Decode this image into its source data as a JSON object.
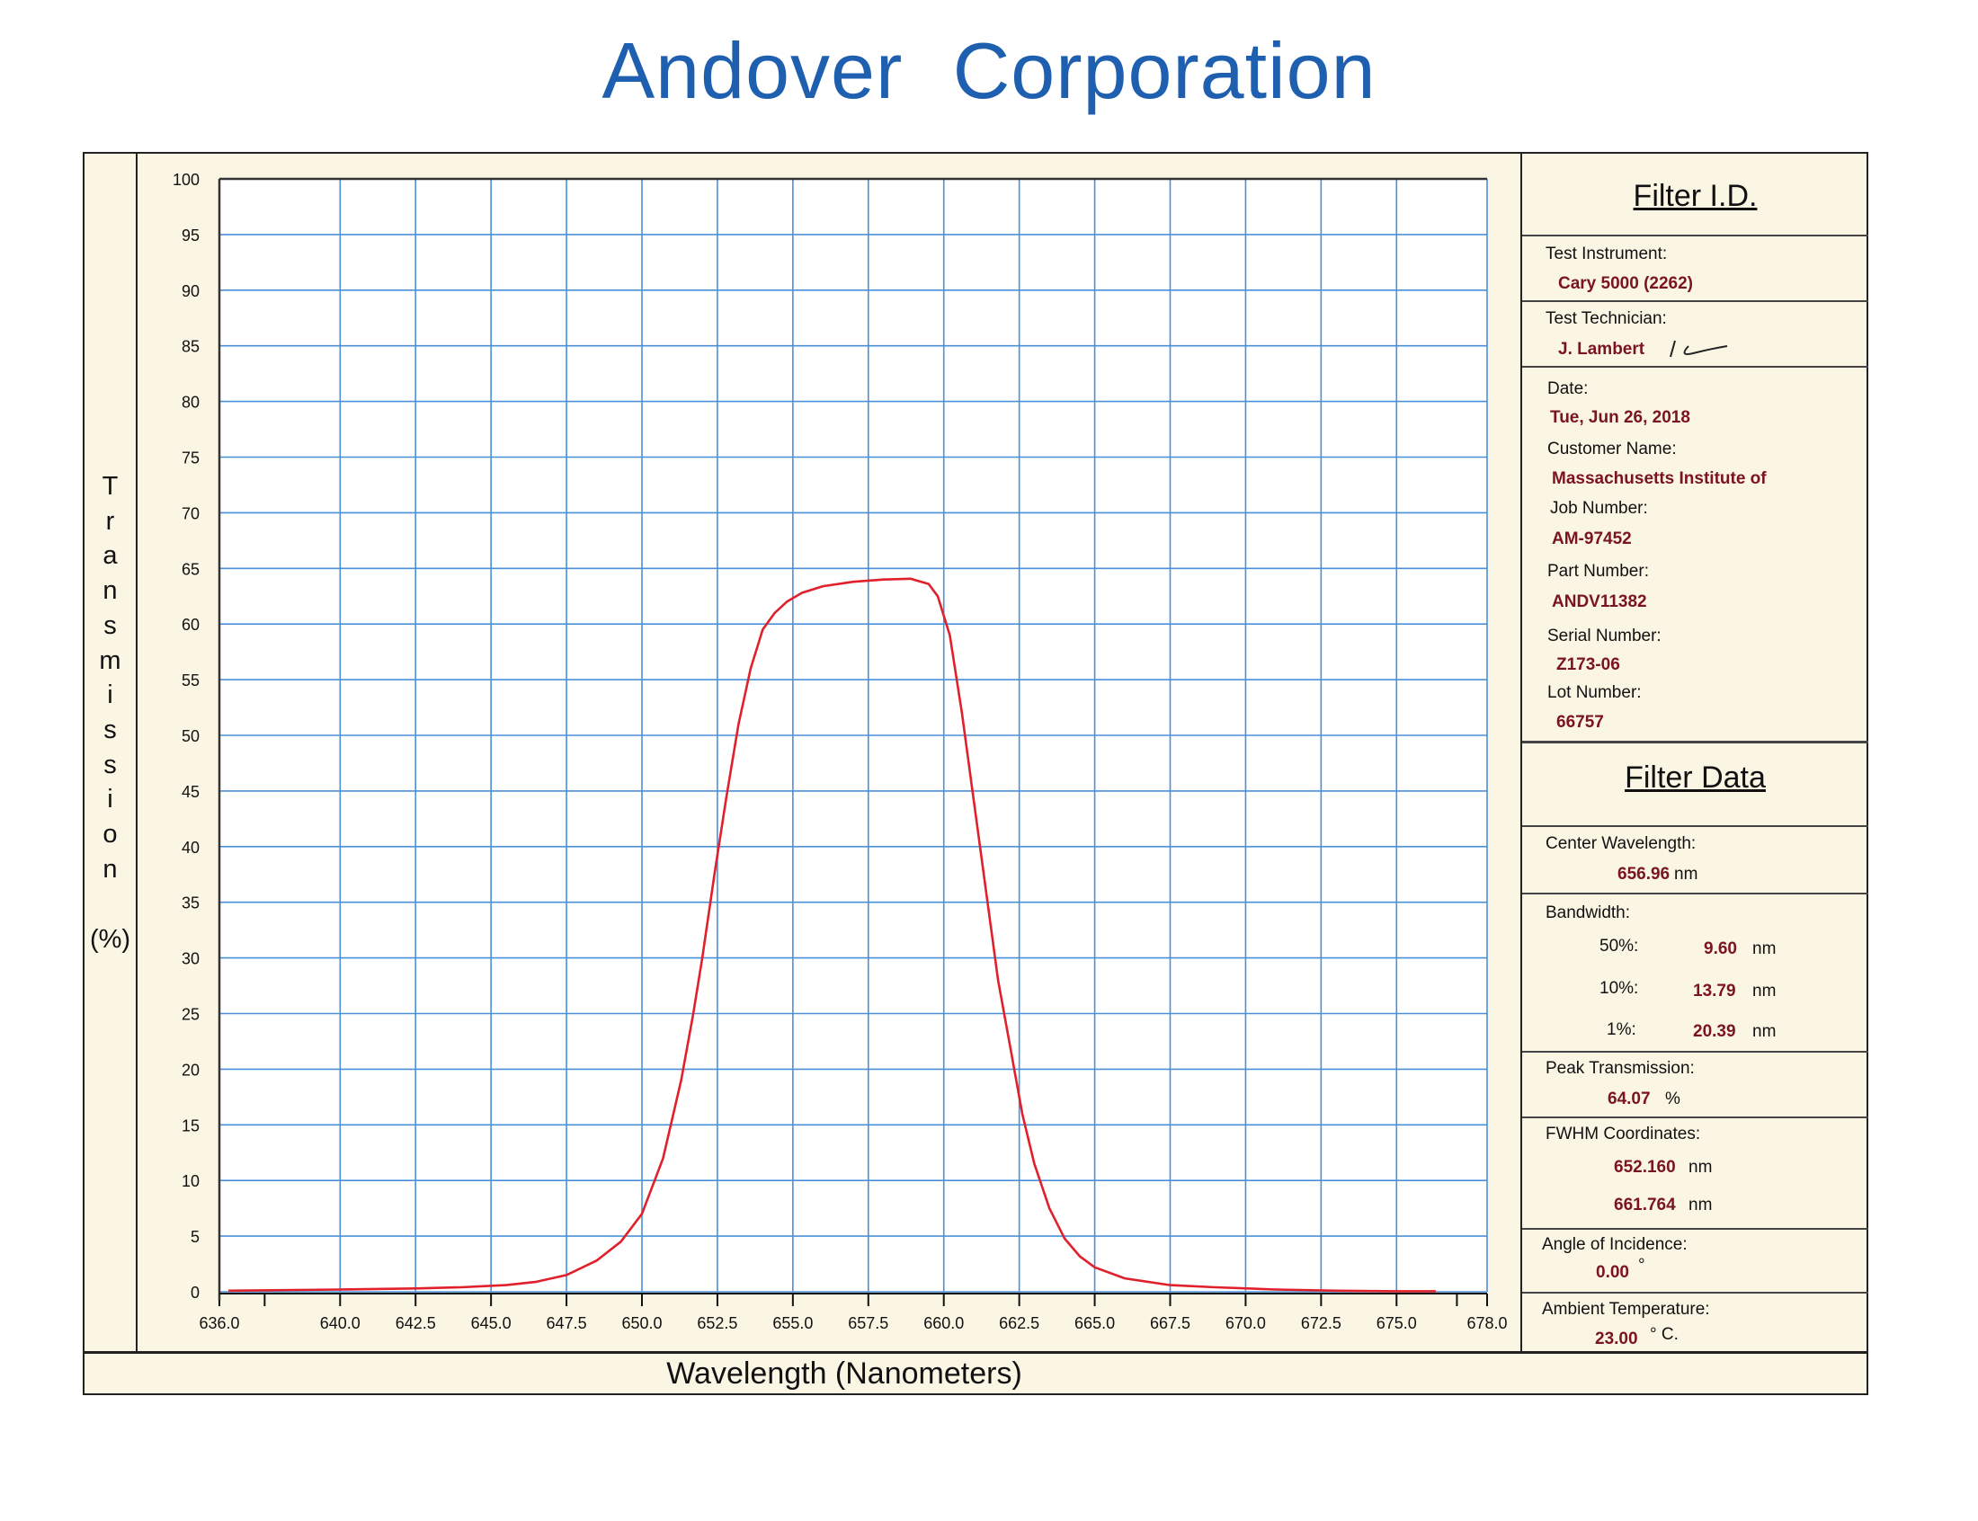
{
  "company": "Andover Corporation",
  "chart_data": {
    "type": "line",
    "xlabel": "Wavelength (Nanometers)",
    "ylabel": "Transmission (%)",
    "xlim": [
      636.0,
      678.0
    ],
    "ylim": [
      0,
      100
    ],
    "xticks": [
      "636.0",
      "640.0",
      "642.5",
      "645.0",
      "647.5",
      "650.0",
      "652.5",
      "655.0",
      "657.5",
      "660.0",
      "662.5",
      "665.0",
      "667.5",
      "670.0",
      "672.5",
      "675.0",
      "678.0"
    ],
    "yticks": [
      "0",
      "5",
      "10",
      "15",
      "20",
      "25",
      "30",
      "35",
      "40",
      "45",
      "50",
      "55",
      "60",
      "65",
      "70",
      "75",
      "80",
      "85",
      "90",
      "95",
      "100"
    ],
    "grid": true,
    "line_color": "#e0202a",
    "grid_color": "#4a90d9",
    "series": [
      {
        "x": [
          636.3,
          640.0,
          642.5,
          644.0,
          645.5,
          646.5,
          647.5,
          648.5,
          649.3,
          650.0,
          650.7,
          651.3,
          651.7,
          652.0,
          652.4,
          652.8,
          653.2,
          653.6,
          654.0,
          654.4,
          654.8,
          655.3,
          656.0,
          657.0,
          658.0,
          658.9,
          659.5,
          659.8,
          660.2,
          660.6,
          661.0,
          661.4,
          661.8,
          662.2,
          662.6,
          663.0,
          663.5,
          664.0,
          664.5,
          665.0,
          666.0,
          667.5,
          669.0,
          671.0,
          673.0,
          675.0,
          676.3
        ],
        "y": [
          0.1,
          0.2,
          0.3,
          0.4,
          0.6,
          0.9,
          1.5,
          2.8,
          4.5,
          7.0,
          12.0,
          19.0,
          25.0,
          30.0,
          37.5,
          44.5,
          51.0,
          56.0,
          59.5,
          61.0,
          62.0,
          62.8,
          63.4,
          63.8,
          64.0,
          64.07,
          63.6,
          62.5,
          59.0,
          52.0,
          44.0,
          36.0,
          28.0,
          22.0,
          16.0,
          11.5,
          7.5,
          4.8,
          3.2,
          2.2,
          1.2,
          0.6,
          0.4,
          0.2,
          0.1,
          0.05,
          0.05
        ]
      }
    ]
  },
  "panel": {
    "filter_id_title": "Filter I.D.",
    "test_instrument_label": "Test Instrument:",
    "test_instrument": "Cary 5000 (2262)",
    "test_technician_label": "Test Technician:",
    "test_technician": "J. Lambert",
    "date_label": "Date:",
    "date": "Tue, Jun 26, 2018",
    "customer_label": "Customer Name:",
    "customer": "Massachusetts Institute of",
    "job_label": "Job Number:",
    "job": "AM-97452",
    "part_label": "Part Number:",
    "part": "ANDV11382",
    "serial_label": "Serial Number:",
    "serial": "Z173-06",
    "lot_label": "Lot Number:",
    "lot": "66757",
    "filter_data_title": "Filter Data",
    "center_label": "Center Wavelength:",
    "center_value": "656.96",
    "center_unit": "nm",
    "bandwidth_label": "Bandwidth:",
    "bw50_label": "50%:",
    "bw50_value": "9.60",
    "bw10_label": "10%:",
    "bw10_value": "13.79",
    "bw1_label": "1%:",
    "bw1_value": "20.39",
    "bw_unit": "nm",
    "peak_label": "Peak Transmission:",
    "peak_value": "64.07",
    "peak_unit": "%",
    "fwhm_label": "FWHM Coordinates:",
    "fwhm_1": "652.160",
    "fwhm_2": "661.764",
    "fwhm_unit": "nm",
    "aoi_label": "Angle of Incidence:",
    "aoi_value": "0.00",
    "aoi_unit": "°",
    "temp_label": "Ambient Temperature:",
    "temp_value": "23.00",
    "temp_unit": "° C."
  }
}
